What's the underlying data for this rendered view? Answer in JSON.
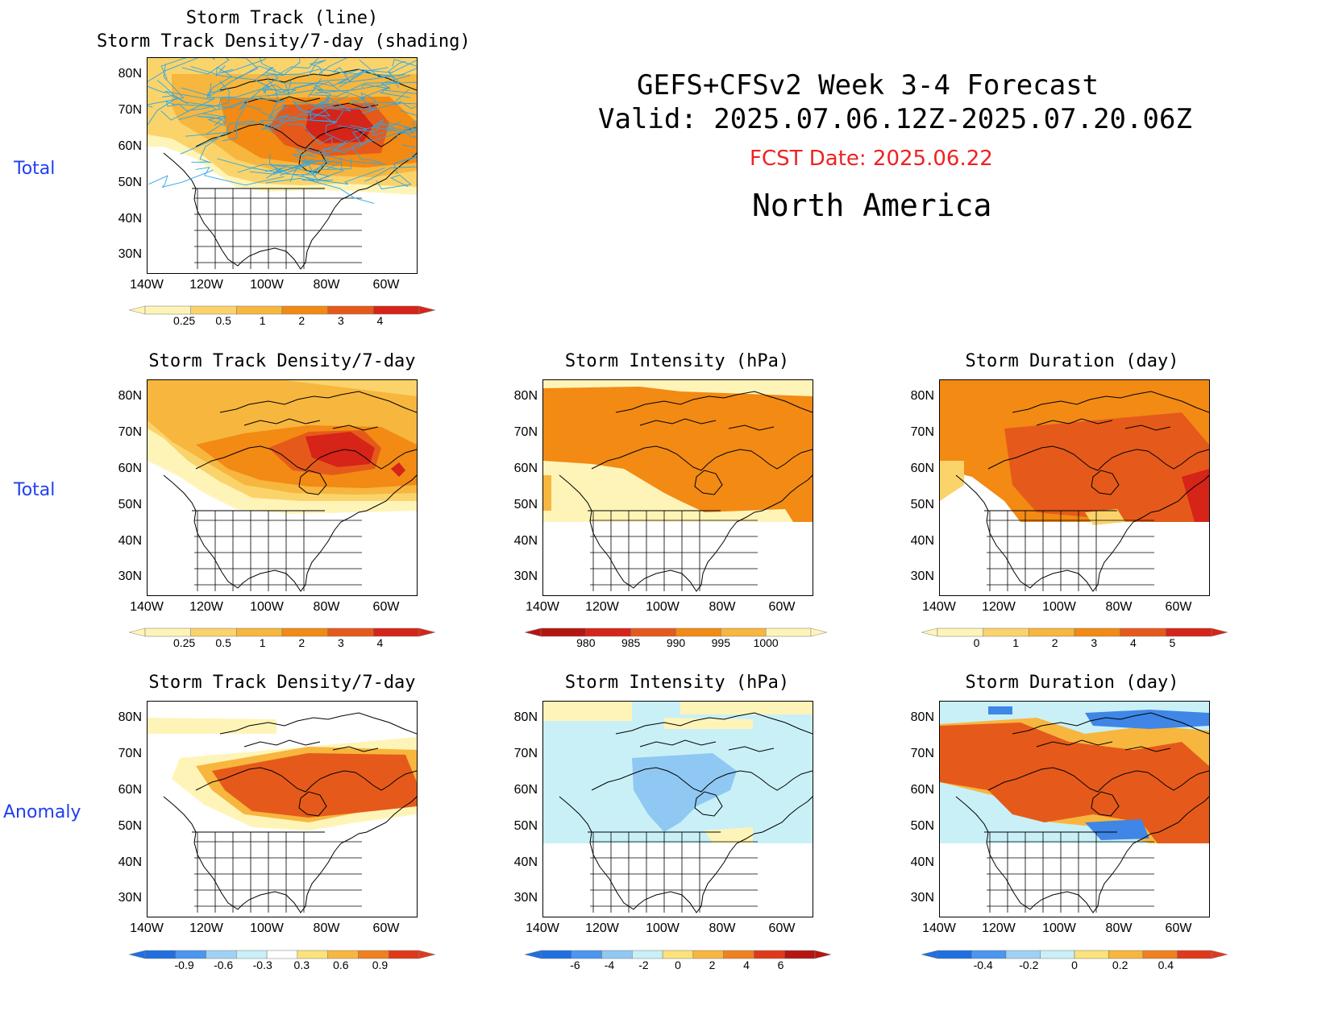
{
  "header": {
    "line1": "GEFS+CFSv2 Week 3-4 Forecast",
    "line2": "Valid: 2025.07.06.12Z-2025.07.20.06Z",
    "fcst": "FCST Date: 2025.06.22",
    "region": "North America"
  },
  "row_labels": [
    "Total",
    "Total",
    "Anomaly"
  ],
  "axes": {
    "lat": [
      "80N",
      "70N",
      "60N",
      "50N",
      "40N",
      "30N"
    ],
    "lon": [
      "140W",
      "120W",
      "100W",
      "80W",
      "60W"
    ]
  },
  "panels": [
    {
      "id": "p1",
      "title1": "Storm Track (line)",
      "title2": "Storm Track Density/7-day (shading)",
      "cbar_labels": [
        "0.25",
        "0.5",
        "1",
        "2",
        "3",
        "4"
      ],
      "cbar_colors": [
        "#fff4b8",
        "#fbd36b",
        "#f7b63e",
        "#f28a14",
        "#e55a1a",
        "#d62418"
      ]
    },
    {
      "id": "p2",
      "title1": "Storm Track Density/7-day",
      "cbar_labels": [
        "0.25",
        "0.5",
        "1",
        "2",
        "3",
        "4"
      ],
      "cbar_colors": [
        "#fff4b8",
        "#fbd36b",
        "#f7b63e",
        "#f28a14",
        "#e55a1a",
        "#d62418"
      ]
    },
    {
      "id": "p3",
      "title1": "Storm Intensity (hPa)",
      "cbar_labels": [
        "980",
        "985",
        "990",
        "995",
        "1000"
      ],
      "cbar_colors": [
        "#b5150f",
        "#d62418",
        "#e55a1a",
        "#f28a14",
        "#f7b63e",
        "#fff4b8"
      ]
    },
    {
      "id": "p4",
      "title1": "Storm Duration (day)",
      "cbar_labels": [
        "0",
        "1",
        "2",
        "3",
        "4",
        "5"
      ],
      "cbar_colors": [
        "#fff4b8",
        "#fbd36b",
        "#f7b63e",
        "#f28a14",
        "#e55a1a",
        "#d62418"
      ]
    },
    {
      "id": "p5",
      "title1": "Storm Track Density/7-day",
      "cbar_labels": [
        "-0.9",
        "-0.6",
        "-0.3",
        "0.3",
        "0.6",
        "0.9"
      ],
      "cbar_colors": [
        "#1f6fe0",
        "#4a96f0",
        "#9ed2f5",
        "#c9f0f7",
        "#ffffff",
        "#fbe27a",
        "#f7b63e",
        "#f08020",
        "#e0391a"
      ]
    },
    {
      "id": "p6",
      "title1": "Storm Intensity (hPa)",
      "cbar_labels": [
        "-6",
        "-4",
        "-2",
        "0",
        "2",
        "4",
        "6"
      ],
      "cbar_colors": [
        "#1f6fe0",
        "#4a96f0",
        "#8fc8f2",
        "#c9f0f7",
        "#fbe27a",
        "#f7b63e",
        "#f08020",
        "#e0391a",
        "#b5150f"
      ]
    },
    {
      "id": "p7",
      "title1": "Storm Duration (day)",
      "cbar_labels": [
        "-0.4",
        "-0.2",
        "0",
        "0.2",
        "0.4"
      ],
      "cbar_colors": [
        "#1f6fe0",
        "#4a96f0",
        "#9ed2f5",
        "#c9f0f7",
        "#fbe27a",
        "#f7b63e",
        "#f08020",
        "#e0391a"
      ]
    }
  ],
  "colors": {
    "yellow": "#fff4b8",
    "ltorange": "#fbd36b",
    "orange": "#f7b63e",
    "dkorange": "#f28a14",
    "red": "#e55a1a",
    "dkred": "#d62418",
    "cyan": "#c9f0f7",
    "ltblue": "#8fc8f2",
    "blue": "#3f86e6",
    "track": "#2aa7e8",
    "label_blue": "#1f3ff0",
    "fcst_red": "#ee2222"
  }
}
